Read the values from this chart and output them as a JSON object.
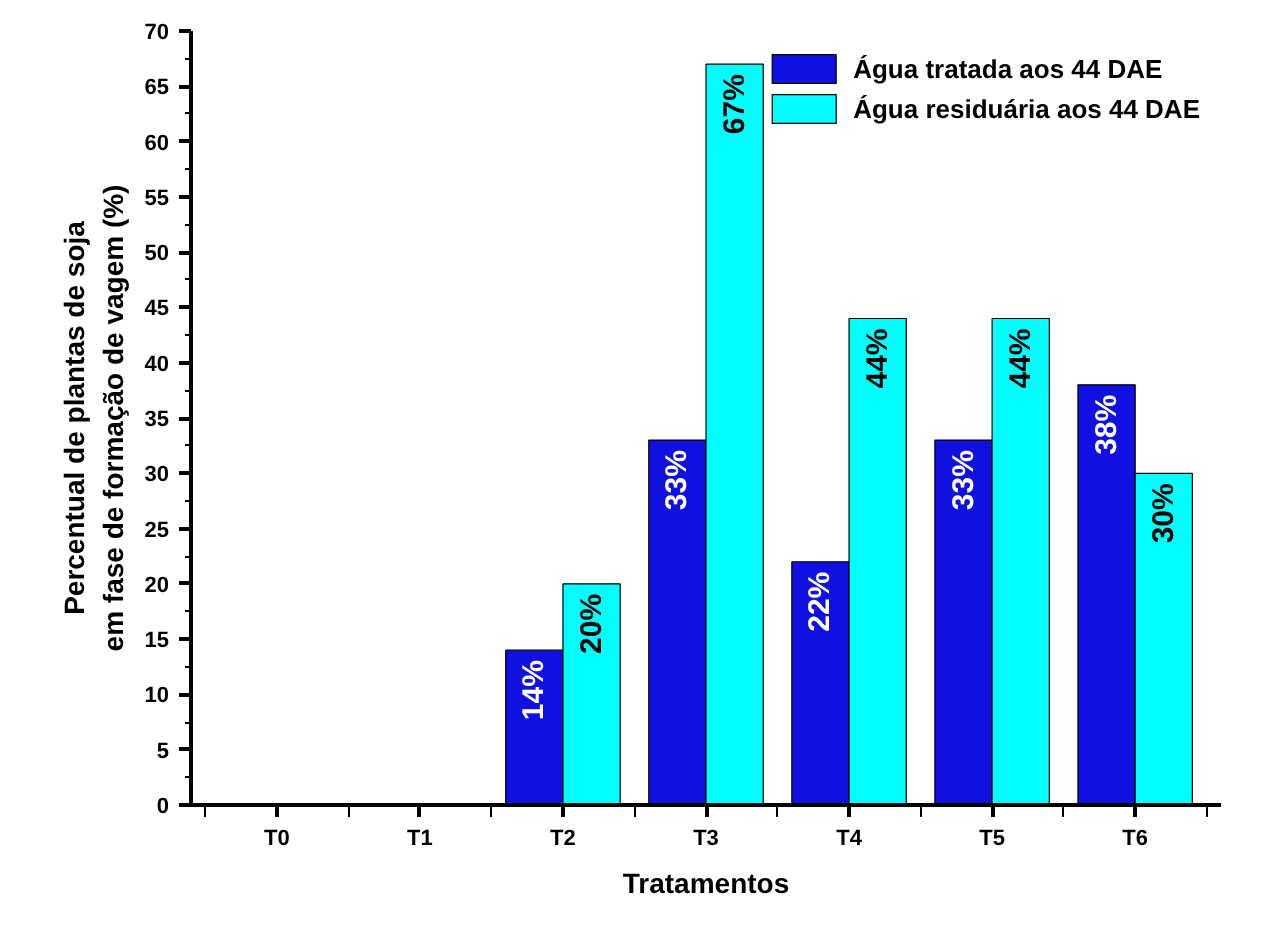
{
  "chart_data": {
    "type": "bar",
    "xlabel": "Tratamentos",
    "ylabel": "Percentual de plantas de soja\nem fase de formação de vagem (%)",
    "categories": [
      "T0",
      "T1",
      "T2",
      "T3",
      "T4",
      "T5",
      "T6"
    ],
    "series": [
      {
        "name": "Água tratada aos 44 DAE",
        "color": "#1010e0",
        "values": [
          null,
          null,
          14,
          33,
          22,
          33,
          38
        ],
        "value_labels": [
          null,
          null,
          "14%",
          "33%",
          "22%",
          "33%",
          "38%"
        ]
      },
      {
        "name": "Água residuária aos 44 DAE",
        "color": "#00ffff",
        "values": [
          null,
          null,
          20,
          67,
          44,
          44,
          30
        ],
        "value_labels": [
          null,
          null,
          "20%",
          "67%",
          "44%",
          "44%",
          "30%"
        ]
      }
    ],
    "ylim": [
      0,
      70
    ],
    "yticks": [
      0,
      5,
      10,
      15,
      20,
      25,
      30,
      35,
      40,
      45,
      50,
      55,
      60,
      65,
      70
    ],
    "grid": false,
    "legend": "top right"
  }
}
